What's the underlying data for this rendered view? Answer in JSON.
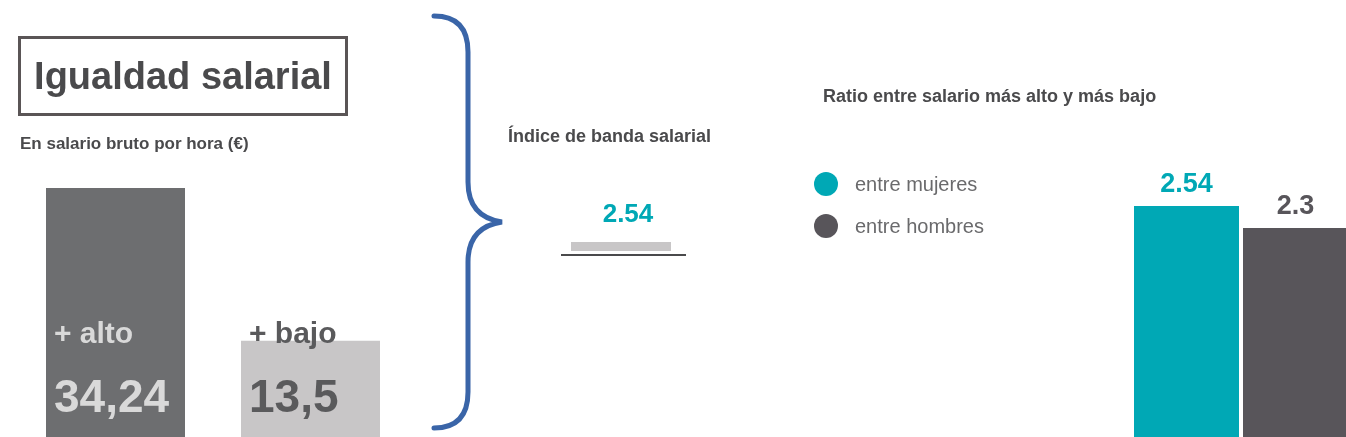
{
  "chart_data": [
    {
      "type": "bar",
      "title": "Igualdad salarial",
      "subtitle": "En salario bruto por hora (€)",
      "categories": [
        "+ alto",
        "+ bajo"
      ],
      "values": [
        34.24,
        13.5
      ],
      "colors": [
        "#6d6e70",
        "#c8c6c7"
      ],
      "value_labels": [
        "34,24",
        "13,5"
      ]
    },
    {
      "type": "other",
      "title": "Índice de banda salarial",
      "annotations": [
        "2.54"
      ]
    },
    {
      "type": "bar",
      "title": "Ratio entre salario más alto y más bajo",
      "categories": [
        null
      ],
      "series": [
        {
          "name": "entre mujeres",
          "color": "#00a8b5",
          "values": [
            2.54
          ]
        },
        {
          "name": "entre hombres",
          "color": "#58555a",
          "values": [
            2.3
          ]
        }
      ],
      "data_labels": true,
      "legend": "left"
    }
  ]
}
